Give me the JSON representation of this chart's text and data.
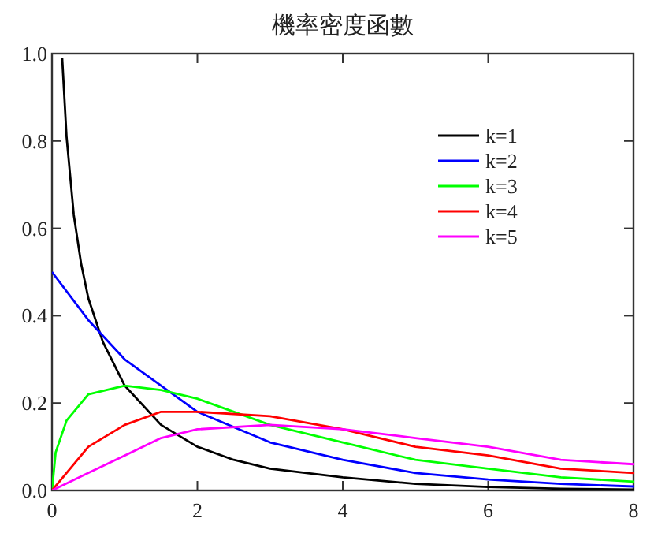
{
  "chart_data": {
    "type": "line",
    "title": "機率密度函數",
    "xlim": [
      0,
      8
    ],
    "ylim": [
      0,
      1
    ],
    "xticks": [
      0,
      2,
      4,
      6,
      8
    ],
    "yticks": [
      {
        "value": 0,
        "label": "0.0"
      },
      {
        "value": 0.2,
        "label": "0.2"
      },
      {
        "value": 0.4,
        "label": "0.4"
      },
      {
        "value": 0.6,
        "label": "0.6"
      },
      {
        "value": 0.8,
        "label": "0.8"
      },
      {
        "value": 1,
        "label": "1.0"
      }
    ],
    "legend": "top right",
    "series": [
      {
        "name": "k=1",
        "color": "#000000",
        "x": [
          0.14,
          0.2,
          0.3,
          0.4,
          0.5,
          0.7,
          1,
          1.5,
          2,
          2.5,
          3,
          4,
          5,
          6,
          7,
          8
        ],
        "values": [
          0.99,
          0.81,
          0.63,
          0.52,
          0.44,
          0.34,
          0.24,
          0.15,
          0.1,
          0.07,
          0.05,
          0.03,
          0.015,
          0.008,
          0.004,
          0.002
        ]
      },
      {
        "name": "k=2",
        "color": "#0000ff",
        "x": [
          0,
          0.5,
          1,
          1.5,
          2,
          3,
          4,
          5,
          6,
          7,
          8
        ],
        "values": [
          0.5,
          0.39,
          0.3,
          0.24,
          0.18,
          0.11,
          0.07,
          0.04,
          0.025,
          0.015,
          0.009
        ]
      },
      {
        "name": "k=3",
        "color": "#00ff00",
        "x": [
          0,
          0.05,
          0.2,
          0.5,
          1,
          1.5,
          2,
          3,
          4,
          5,
          6,
          7,
          8
        ],
        "values": [
          0,
          0.087,
          0.16,
          0.22,
          0.24,
          0.23,
          0.21,
          0.15,
          0.11,
          0.07,
          0.05,
          0.03,
          0.02
        ]
      },
      {
        "name": "k=4",
        "color": "#ff0000",
        "x": [
          0,
          0.5,
          1,
          1.5,
          2,
          3,
          4,
          5,
          6,
          7,
          8
        ],
        "values": [
          0,
          0.1,
          0.15,
          0.18,
          0.18,
          0.17,
          0.14,
          0.1,
          0.08,
          0.05,
          0.04
        ]
      },
      {
        "name": "k=5",
        "color": "#ff00ff",
        "x": [
          0,
          0.5,
          1,
          1.5,
          2,
          3,
          4,
          5,
          6,
          7,
          8
        ],
        "values": [
          0,
          0.04,
          0.08,
          0.12,
          0.14,
          0.15,
          0.14,
          0.12,
          0.1,
          0.07,
          0.06
        ]
      }
    ]
  }
}
